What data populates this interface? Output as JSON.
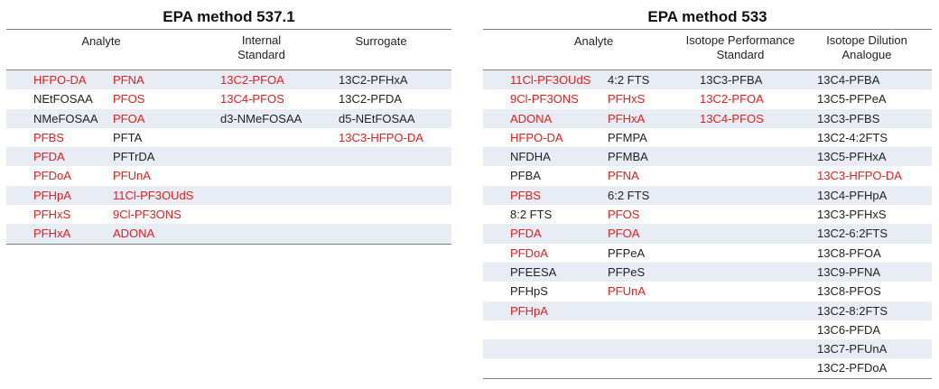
{
  "red_color": "#e02020",
  "shade_color": "#e8ecf5",
  "table1": {
    "title": "EPA method 537.1",
    "headers": {
      "analyte": "Analyte",
      "internal_standard": "Internal\nStandard",
      "surrogate": "Surrogate"
    },
    "rows": [
      [
        {
          "t": "HFPO-DA",
          "r": true
        },
        {
          "t": "PFNA",
          "r": true
        },
        {
          "t": "13C2-PFOA",
          "r": true
        },
        {
          "t": "13C2-PFHxA",
          "r": false
        }
      ],
      [
        {
          "t": "NEtFOSAA",
          "r": false
        },
        {
          "t": "PFOS",
          "r": true
        },
        {
          "t": "13C4-PFOS",
          "r": true
        },
        {
          "t": "13C2-PFDA",
          "r": false
        }
      ],
      [
        {
          "t": "NMeFOSAA",
          "r": false
        },
        {
          "t": "PFOA",
          "r": true
        },
        {
          "t": "d3-NMeFOSAA",
          "r": false
        },
        {
          "t": "d5-NEtFOSAA",
          "r": false
        }
      ],
      [
        {
          "t": "PFBS",
          "r": true
        },
        {
          "t": "PFTA",
          "r": false
        },
        {
          "t": "",
          "r": false
        },
        {
          "t": "13C3-HFPO-DA",
          "r": true
        }
      ],
      [
        {
          "t": "PFDA",
          "r": true
        },
        {
          "t": "PFTrDA",
          "r": false
        },
        {
          "t": "",
          "r": false
        },
        {
          "t": "",
          "r": false
        }
      ],
      [
        {
          "t": "PFDoA",
          "r": true
        },
        {
          "t": "PFUnA",
          "r": true
        },
        {
          "t": "",
          "r": false
        },
        {
          "t": "",
          "r": false
        }
      ],
      [
        {
          "t": "PFHpA",
          "r": true
        },
        {
          "t": "11Cl-PF3OUdS",
          "r": true
        },
        {
          "t": "",
          "r": false
        },
        {
          "t": "",
          "r": false
        }
      ],
      [
        {
          "t": "PFHxS",
          "r": true
        },
        {
          "t": "9Cl-PF3ONS",
          "r": true
        },
        {
          "t": "",
          "r": false
        },
        {
          "t": "",
          "r": false
        }
      ],
      [
        {
          "t": "PFHxA",
          "r": true
        },
        {
          "t": "ADONA",
          "r": true
        },
        {
          "t": "",
          "r": false
        },
        {
          "t": "",
          "r": false
        }
      ]
    ]
  },
  "table2": {
    "title": "EPA method 533",
    "headers": {
      "analyte": "Analyte",
      "isotope_performance": "Isotope Performance\nStandard",
      "isotope_dilution": "Isotope Dilution\nAnalogue"
    },
    "rows": [
      [
        {
          "t": "11Cl-PF3OUdS",
          "r": true
        },
        {
          "t": "4:2 FTS",
          "r": false
        },
        {
          "t": "13C3-PFBA",
          "r": false
        },
        {
          "t": "13C4-PFBA",
          "r": false
        }
      ],
      [
        {
          "t": "9Cl-PF3ONS",
          "r": true
        },
        {
          "t": "PFHxS",
          "r": true
        },
        {
          "t": "13C2-PFOA",
          "r": true
        },
        {
          "t": "13C5-PFPeA",
          "r": false
        }
      ],
      [
        {
          "t": "ADONA",
          "r": true
        },
        {
          "t": "PFHxA",
          "r": true
        },
        {
          "t": "13C4-PFOS",
          "r": true
        },
        {
          "t": "13C3-PFBS",
          "r": false
        }
      ],
      [
        {
          "t": "HFPO-DA",
          "r": true
        },
        {
          "t": "PFMPA",
          "r": false
        },
        {
          "t": "",
          "r": false
        },
        {
          "t": "13C2-4:2FTS",
          "r": false
        }
      ],
      [
        {
          "t": "NFDHA",
          "r": false
        },
        {
          "t": "PFMBA",
          "r": false
        },
        {
          "t": "",
          "r": false
        },
        {
          "t": "13C5-PFHxA",
          "r": false
        }
      ],
      [
        {
          "t": "PFBA",
          "r": false
        },
        {
          "t": "PFNA",
          "r": true
        },
        {
          "t": "",
          "r": false
        },
        {
          "t": "13C3-HFPO-DA",
          "r": true
        }
      ],
      [
        {
          "t": "PFBS",
          "r": true
        },
        {
          "t": "6:2 FTS",
          "r": false
        },
        {
          "t": "",
          "r": false
        },
        {
          "t": "13C4-PFHpA",
          "r": false
        }
      ],
      [
        {
          "t": "8:2 FTS",
          "r": false
        },
        {
          "t": "PFOS",
          "r": true
        },
        {
          "t": "",
          "r": false
        },
        {
          "t": "13C3-PFHxS",
          "r": false
        }
      ],
      [
        {
          "t": "PFDA",
          "r": true
        },
        {
          "t": "PFOA",
          "r": true
        },
        {
          "t": "",
          "r": false
        },
        {
          "t": "13C2-6:2FTS",
          "r": false
        }
      ],
      [
        {
          "t": "PFDoA",
          "r": true
        },
        {
          "t": "PFPeA",
          "r": false
        },
        {
          "t": "",
          "r": false
        },
        {
          "t": "13C8-PFOA",
          "r": false
        }
      ],
      [
        {
          "t": "PFEESA",
          "r": false
        },
        {
          "t": "PFPeS",
          "r": false
        },
        {
          "t": "",
          "r": false
        },
        {
          "t": "13C9-PFNA",
          "r": false
        }
      ],
      [
        {
          "t": "PFHpS",
          "r": false
        },
        {
          "t": "PFUnA",
          "r": true
        },
        {
          "t": "",
          "r": false
        },
        {
          "t": "13C8-PFOS",
          "r": false
        }
      ],
      [
        {
          "t": "PFHpA",
          "r": true
        },
        {
          "t": "",
          "r": false
        },
        {
          "t": "",
          "r": false
        },
        {
          "t": "13C2-8:2FTS",
          "r": false
        }
      ],
      [
        {
          "t": "",
          "r": false
        },
        {
          "t": "",
          "r": false
        },
        {
          "t": "",
          "r": false
        },
        {
          "t": "13C6-PFDA",
          "r": false
        }
      ],
      [
        {
          "t": "",
          "r": false
        },
        {
          "t": "",
          "r": false
        },
        {
          "t": "",
          "r": false
        },
        {
          "t": "13C7-PFUnA",
          "r": false
        }
      ],
      [
        {
          "t": "",
          "r": false
        },
        {
          "t": "",
          "r": false
        },
        {
          "t": "",
          "r": false
        },
        {
          "t": "13C2-PFDoA",
          "r": false
        }
      ]
    ]
  }
}
